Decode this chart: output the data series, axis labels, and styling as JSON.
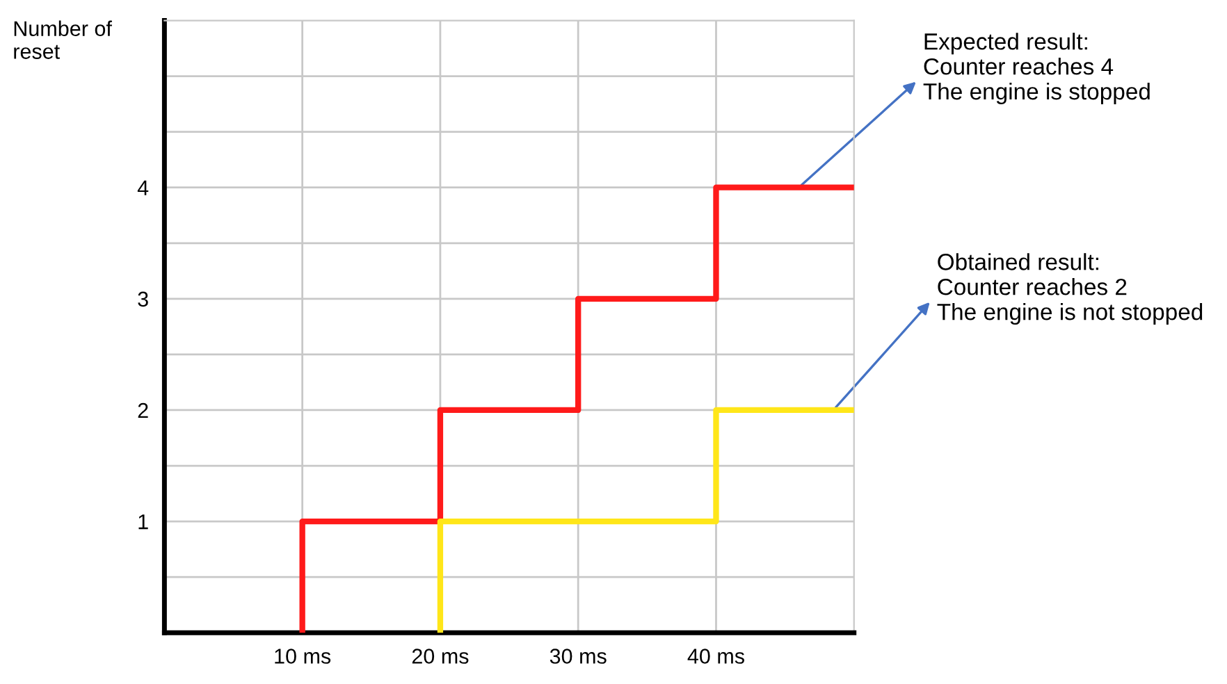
{
  "chart_data": {
    "type": "step",
    "ylabel": "Number of\nreset",
    "xlim": [
      0,
      50
    ],
    "xticks": [
      {
        "value": 10,
        "label": "10 ms"
      },
      {
        "value": 20,
        "label": "20 ms"
      },
      {
        "value": 30,
        "label": "30 ms"
      },
      {
        "value": 40,
        "label": "40 ms"
      }
    ],
    "ylim": [
      0,
      5.5
    ],
    "yticks": [
      {
        "value": 0.5,
        "label": null
      },
      1,
      {
        "value": 1.5,
        "label": null
      },
      2,
      {
        "value": 2.5,
        "label": null
      },
      3,
      {
        "value": 3.5,
        "label": null
      },
      4,
      {
        "value": 4.5,
        "label": null
      },
      {
        "value": 5,
        "label": null
      }
    ],
    "grid": true,
    "line_style": "solid",
    "marker": "none",
    "series": [
      {
        "color": "#ff1a1a",
        "x": [
          10,
          10,
          20,
          30,
          40,
          50
        ],
        "values": [
          0,
          1,
          2,
          3,
          4,
          4
        ]
      },
      {
        "color": "#ffe619",
        "x": [
          20,
          20,
          40,
          50
        ],
        "values": [
          0,
          1,
          2,
          2
        ]
      }
    ],
    "annotations": [
      {
        "text": "Expected result:\nCounter reaches 4\nThe engine is stopped",
        "x": 46,
        "y": 4
      },
      {
        "text": "Obtained result:\nCounter reaches 2\nThe engine is not stopped",
        "x": 48.5,
        "y": 2
      }
    ]
  }
}
